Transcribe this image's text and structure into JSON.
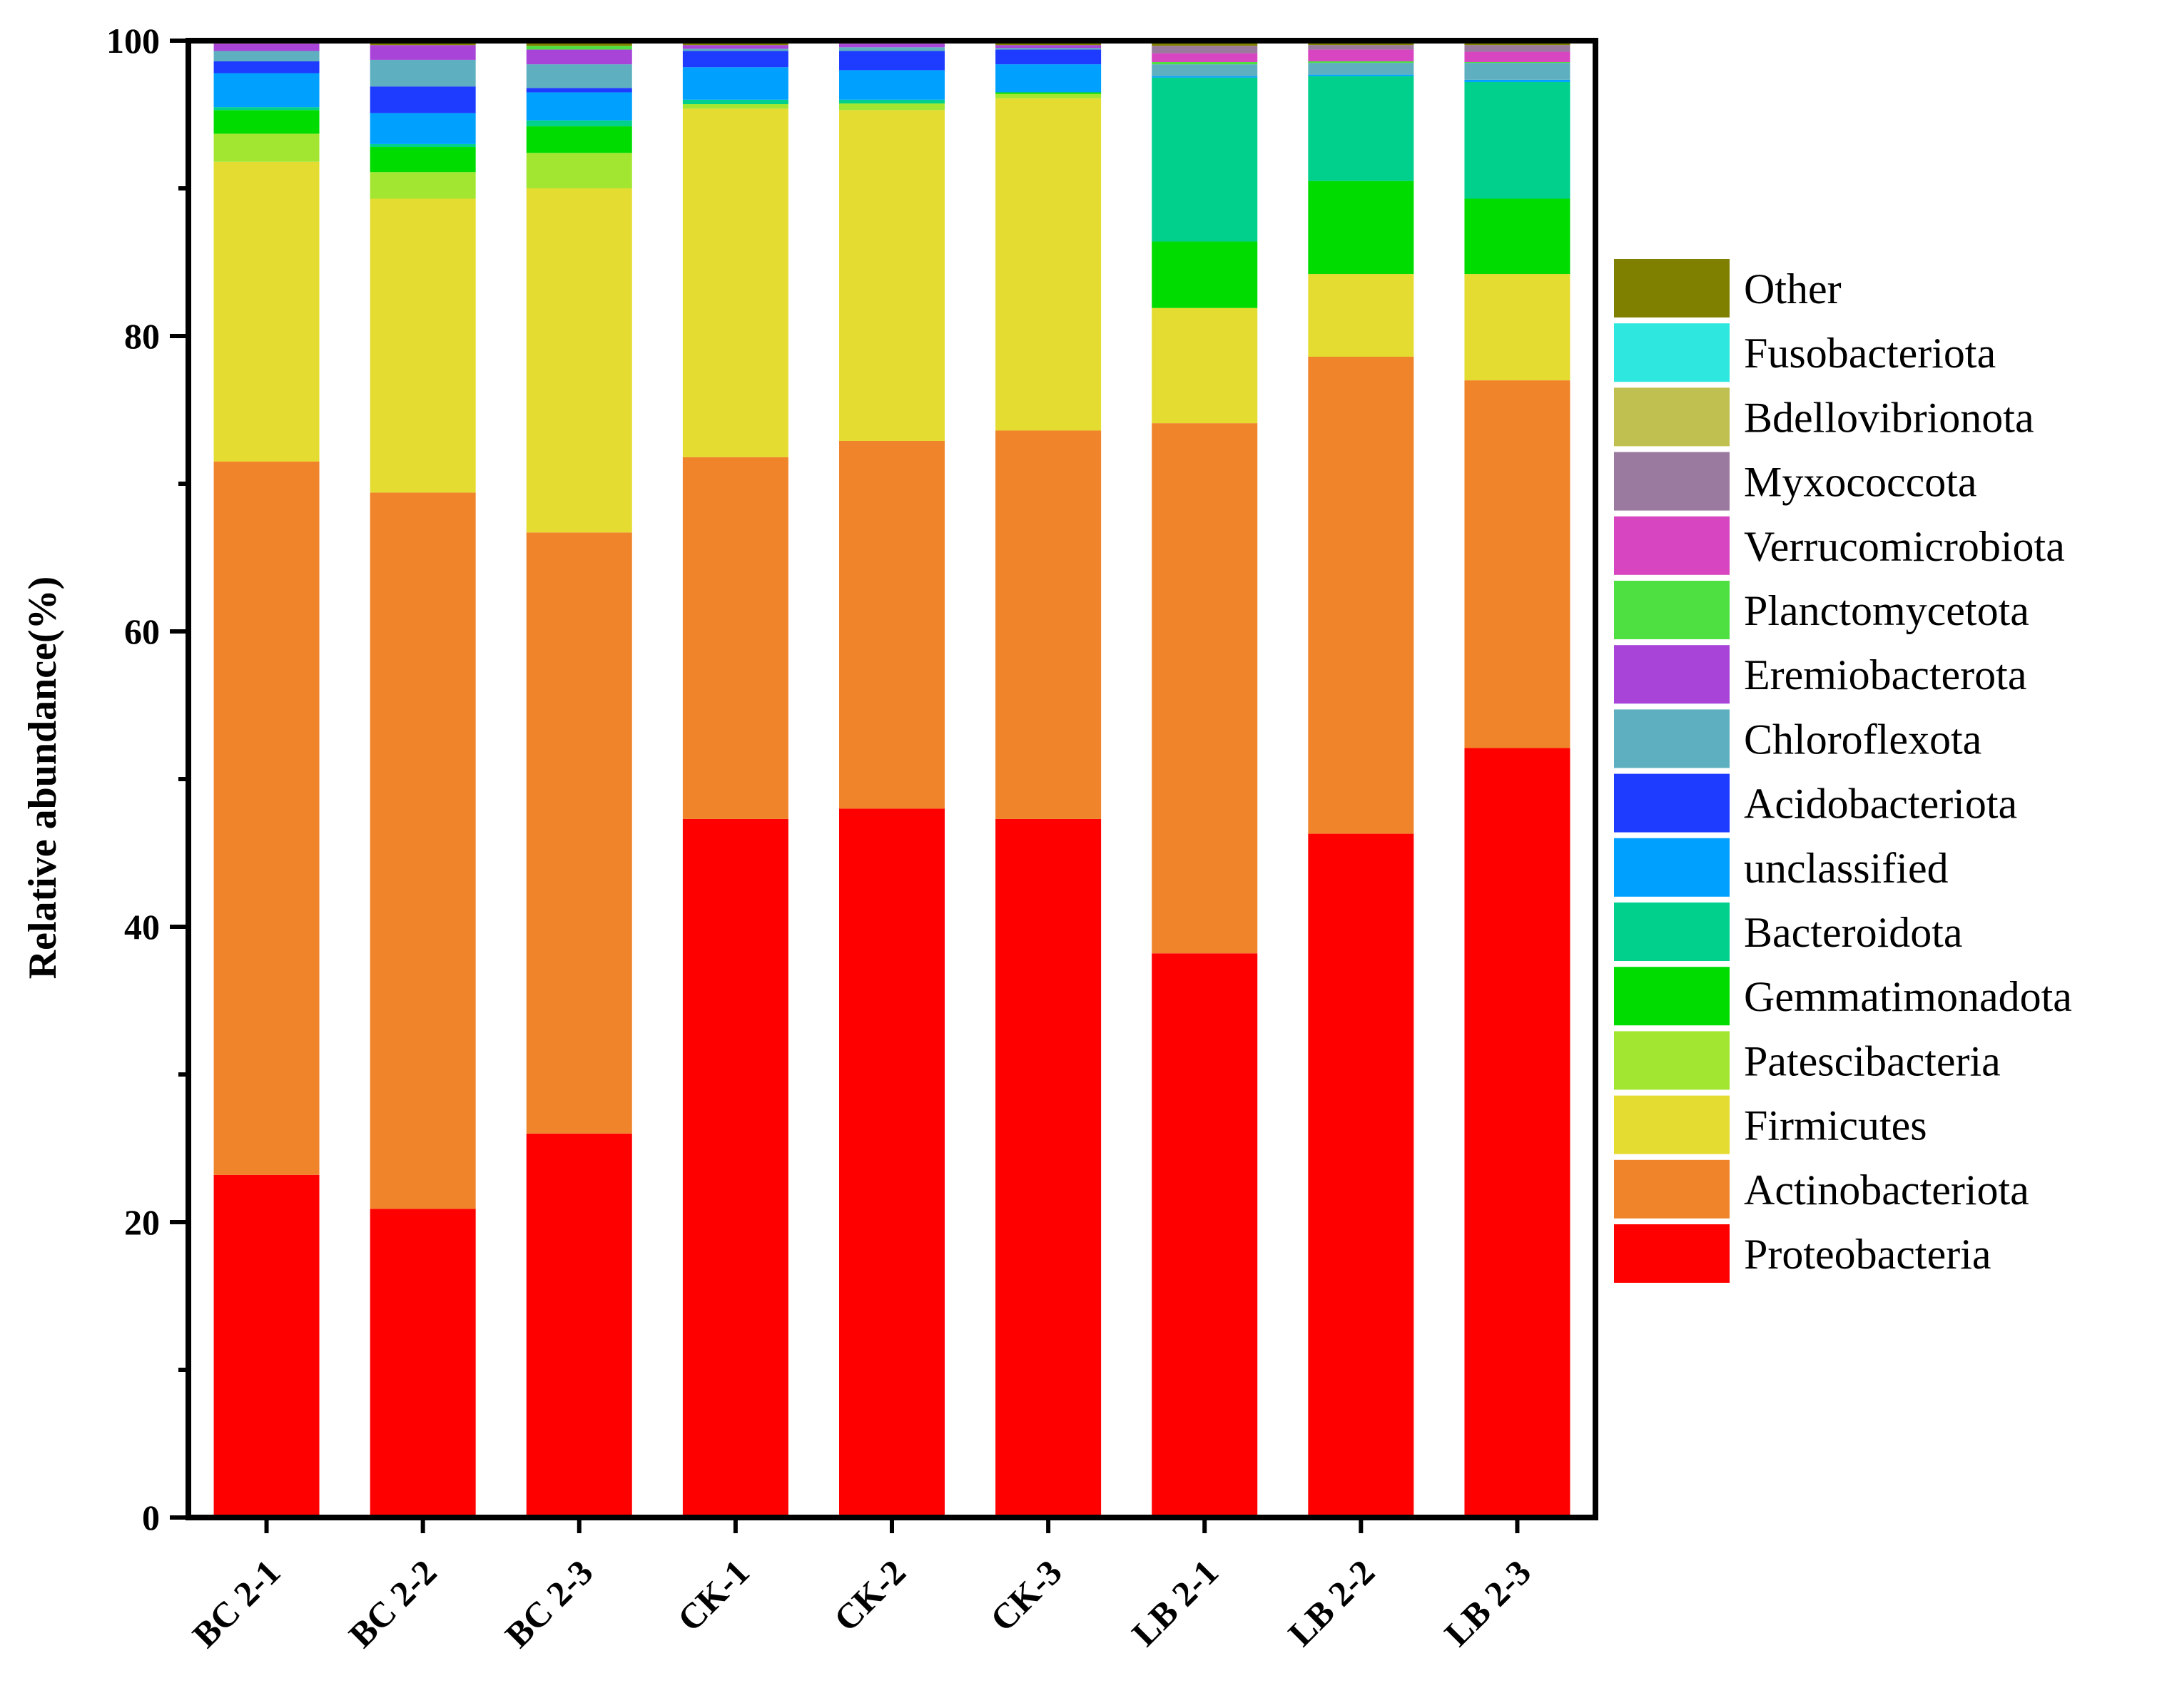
{
  "chart_data": {
    "type": "bar",
    "stacked": true,
    "title": "",
    "xlabel": "",
    "ylabel": "Relative abundance(%)",
    "ylim": [
      0,
      100
    ],
    "yticks": [
      0,
      20,
      40,
      60,
      80,
      100
    ],
    "legend_position": "right",
    "categories": [
      "BC 2-1",
      "BC 2-2",
      "BC 2-3",
      "CK-1",
      "CK-2",
      "CK-3",
      "LB 2-1",
      "LB 2-2",
      "LB 2-3"
    ],
    "series": [
      {
        "name": "Proteobacteria",
        "color": "#ff0000",
        "values": [
          23.2,
          20.9,
          26.0,
          47.3,
          48.0,
          47.3,
          38.2,
          46.3,
          52.1
        ]
      },
      {
        "name": "Actinobacteriota",
        "color": "#f0842a",
        "values": [
          48.3,
          48.5,
          40.7,
          24.5,
          24.9,
          26.3,
          35.9,
          32.3,
          24.9
        ]
      },
      {
        "name": "Firmicutes",
        "color": "#e5dc32",
        "values": [
          20.3,
          19.9,
          23.3,
          23.6,
          22.4,
          22.5,
          7.8,
          5.6,
          7.2
        ]
      },
      {
        "name": "Patescibacteria",
        "color": "#a3e632",
        "values": [
          1.9,
          1.8,
          2.4,
          0.3,
          0.45,
          0.3,
          0.0,
          0.0,
          0.0
        ]
      },
      {
        "name": "Gemmatimonadota",
        "color": "#00dc00",
        "values": [
          1.6,
          1.7,
          1.8,
          0.0,
          0.0,
          0.1,
          4.5,
          6.3,
          5.1
        ]
      },
      {
        "name": "Bacteroidota",
        "color": "#00d08c",
        "values": [
          0.2,
          0.2,
          0.4,
          0.3,
          0.25,
          0.0,
          11.1,
          7.1,
          7.9
        ]
      },
      {
        "name": "unclassified",
        "color": "#00a0ff",
        "values": [
          2.3,
          2.1,
          1.9,
          2.2,
          2.0,
          1.9,
          0.1,
          0.1,
          0.15
        ]
      },
      {
        "name": "Acidobacteriota",
        "color": "#1e3cff",
        "values": [
          0.8,
          1.8,
          0.3,
          1.1,
          1.3,
          1.0,
          0.0,
          0.0,
          0.0
        ]
      },
      {
        "name": "Chloroflexota",
        "color": "#5eb0c0",
        "values": [
          0.7,
          1.8,
          1.6,
          0.15,
          0.25,
          0.1,
          0.8,
          0.8,
          1.15
        ]
      },
      {
        "name": "Eremiobacterota",
        "color": "#a845d8",
        "values": [
          0.5,
          1.0,
          1.0,
          0.25,
          0.25,
          0.2,
          0.0,
          0.0,
          0.0
        ]
      },
      {
        "name": "Planctomycetota",
        "color": "#4ee040",
        "values": [
          0.0,
          0.0,
          0.25,
          0.0,
          0.0,
          0.0,
          0.15,
          0.1,
          0.05
        ]
      },
      {
        "name": "Verrucomicrobiota",
        "color": "#d845c0",
        "values": [
          0.0,
          0.0,
          0.0,
          0.0,
          0.0,
          0.0,
          0.6,
          0.8,
          0.7
        ]
      },
      {
        "name": "Myxococcota",
        "color": "#9b7aa0",
        "values": [
          0.0,
          0.0,
          0.0,
          0.0,
          0.0,
          0.0,
          0.5,
          0.3,
          0.45
        ]
      },
      {
        "name": "Bdellovibrionota",
        "color": "#bfc050",
        "values": [
          0.0,
          0.0,
          0.0,
          0.0,
          0.0,
          0.0,
          0.0,
          0.0,
          0.0
        ]
      },
      {
        "name": "Fusobacteriota",
        "color": "#2ee8e0",
        "values": [
          0.0,
          0.0,
          0.0,
          0.0,
          0.0,
          0.0,
          0.0,
          0.0,
          0.0
        ]
      },
      {
        "name": "Other",
        "color": "#808000",
        "values": [
          0.2,
          0.3,
          0.35,
          0.3,
          0.2,
          0.3,
          0.35,
          0.2,
          0.35
        ]
      }
    ]
  }
}
